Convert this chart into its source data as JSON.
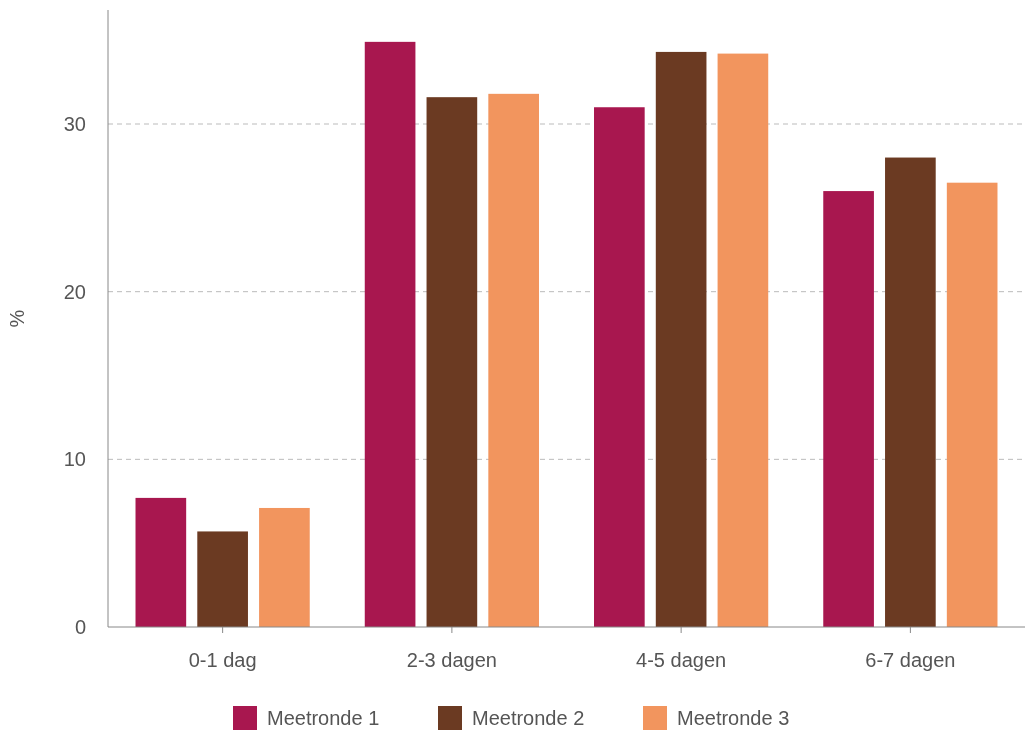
{
  "chart_data": {
    "type": "bar",
    "ylabel": "%",
    "categories": [
      "0-1 dag",
      "2-3 dagen",
      "4-5 dagen",
      "6-7 dagen"
    ],
    "series": [
      {
        "name": "Meetronde 1",
        "color": "#a8174f",
        "values": [
          7.7,
          34.9,
          31.0,
          26.0
        ]
      },
      {
        "name": "Meetronde 2",
        "color": "#6b3a22",
        "values": [
          5.7,
          31.6,
          34.3,
          28.0
        ]
      },
      {
        "name": "Meetronde 3",
        "color": "#f2955e",
        "values": [
          7.1,
          31.8,
          34.2,
          26.5
        ]
      }
    ],
    "ylim": [
      0,
      36.8
    ],
    "yticks": [
      0,
      10,
      20,
      30
    ],
    "grid": "y",
    "legend": "bottom"
  }
}
